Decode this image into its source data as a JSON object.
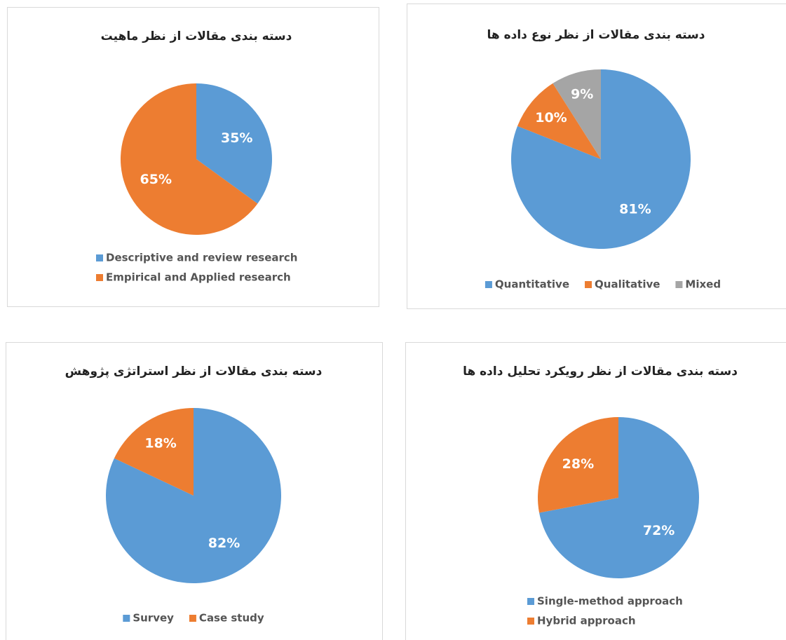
{
  "chart_data": [
    {
      "type": "pie",
      "title": "دسته بندی مقالات از نظر ماهیت",
      "categories": [
        "Descriptive and review research",
        "Empirical and Applied research"
      ],
      "values": [
        35,
        65
      ],
      "value_labels": [
        "35%",
        "65%"
      ],
      "colors": [
        "#5b9bd5",
        "#ed7d31"
      ]
    },
    {
      "type": "pie",
      "title": "دسته بندی مقالات از نظر نوع داده ها",
      "categories": [
        "Quantitative",
        "Qualitative",
        "Mixed"
      ],
      "values": [
        81,
        10,
        9
      ],
      "value_labels": [
        "81%",
        "10%",
        "9%"
      ],
      "colors": [
        "#5b9bd5",
        "#ed7d31",
        "#a5a5a5"
      ]
    },
    {
      "type": "pie",
      "title": "دسته بندی مقالات از نظر استراتژی پژوهش",
      "categories": [
        "Survey",
        "Case study"
      ],
      "values": [
        82,
        18
      ],
      "value_labels": [
        "82%",
        "18%"
      ],
      "colors": [
        "#5b9bd5",
        "#ed7d31"
      ]
    },
    {
      "type": "pie",
      "title": "دسته بندی مقالات از نظر رویکرد تحلیل داده ها",
      "categories": [
        "Single-method approach",
        "Hybrid approach"
      ],
      "values": [
        72,
        28
      ],
      "value_labels": [
        "72%",
        "28%"
      ],
      "colors": [
        "#5b9bd5",
        "#ed7d31"
      ]
    }
  ]
}
